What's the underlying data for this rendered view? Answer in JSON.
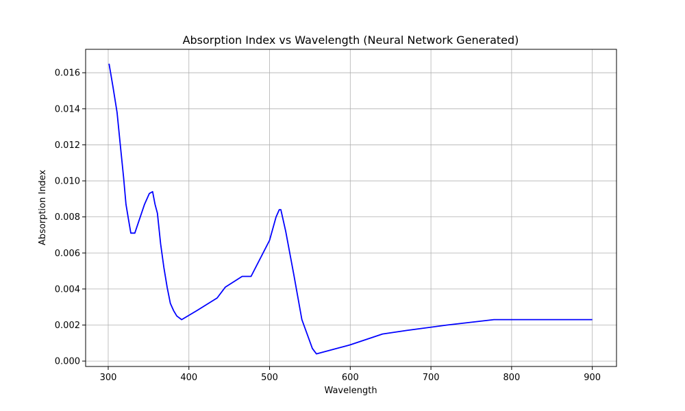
{
  "chart_data": {
    "type": "line",
    "title": "Absorption Index vs Wavelength (Neural Network Generated)",
    "xlabel": "Wavelength",
    "ylabel": "Absorption Index",
    "xlim": [
      272,
      930
    ],
    "ylim": [
      -0.0003,
      0.0173
    ],
    "grid": true,
    "line_color": "#0000ff",
    "xticks": [
      300,
      400,
      500,
      600,
      700,
      800,
      900
    ],
    "xtick_labels": [
      "300",
      "400",
      "500",
      "600",
      "700",
      "800",
      "900"
    ],
    "yticks": [
      0.0,
      0.002,
      0.004,
      0.006,
      0.008,
      0.01,
      0.012,
      0.014,
      0.016
    ],
    "ytick_labels": [
      "0.000",
      "0.002",
      "0.004",
      "0.006",
      "0.008",
      "0.010",
      "0.012",
      "0.014",
      "0.016"
    ],
    "series": [
      {
        "x": [
          301,
          306,
          311,
          315,
          319,
          322,
          325,
          328,
          333,
          345,
          351,
          355,
          358,
          361,
          365,
          369,
          373,
          377,
          381,
          385,
          391,
          410,
          435,
          445,
          466,
          477,
          500,
          508,
          512,
          514,
          520,
          530,
          540,
          553,
          558,
          600,
          640,
          670,
          720,
          778,
          900
        ],
        "y": [
          0.0165,
          0.0152,
          0.0138,
          0.012,
          0.0102,
          0.0087,
          0.0079,
          0.0071,
          0.0071,
          0.0087,
          0.0093,
          0.0094,
          0.0087,
          0.0082,
          0.0065,
          0.0052,
          0.0041,
          0.0032,
          0.0028,
          0.0025,
          0.0023,
          0.0028,
          0.0035,
          0.0041,
          0.0047,
          0.0047,
          0.0067,
          0.008,
          0.0084,
          0.0084,
          0.0072,
          0.0048,
          0.0023,
          0.0007,
          0.0004,
          0.0009,
          0.0015,
          0.0017,
          0.002,
          0.0023,
          0.0023
        ]
      }
    ]
  }
}
